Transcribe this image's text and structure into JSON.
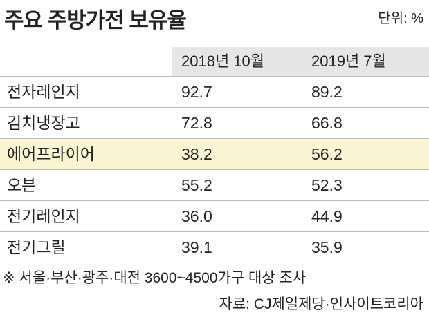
{
  "header": {
    "title": "주요 주방가전 보유율",
    "unit": "단위: %"
  },
  "table": {
    "columns": [
      "2018년 10월",
      "2019년 7월"
    ],
    "rows": [
      [
        "전자레인지",
        "92.7",
        "89.2"
      ],
      [
        "김치냉장고",
        "72.8",
        "66.8"
      ],
      [
        "에어프라이어",
        "38.2",
        "56.2"
      ],
      [
        "오븐",
        "55.2",
        "52.3"
      ],
      [
        "전기레인지",
        "36.0",
        "44.9"
      ],
      [
        "전기그릴",
        "39.1",
        "35.9"
      ]
    ]
  },
  "footer": {
    "note": "※ 서울·부산·광주·대전 3600~4500가구 대상 조사",
    "source": "자료: CJ제일제당·인사이트코리아"
  }
}
